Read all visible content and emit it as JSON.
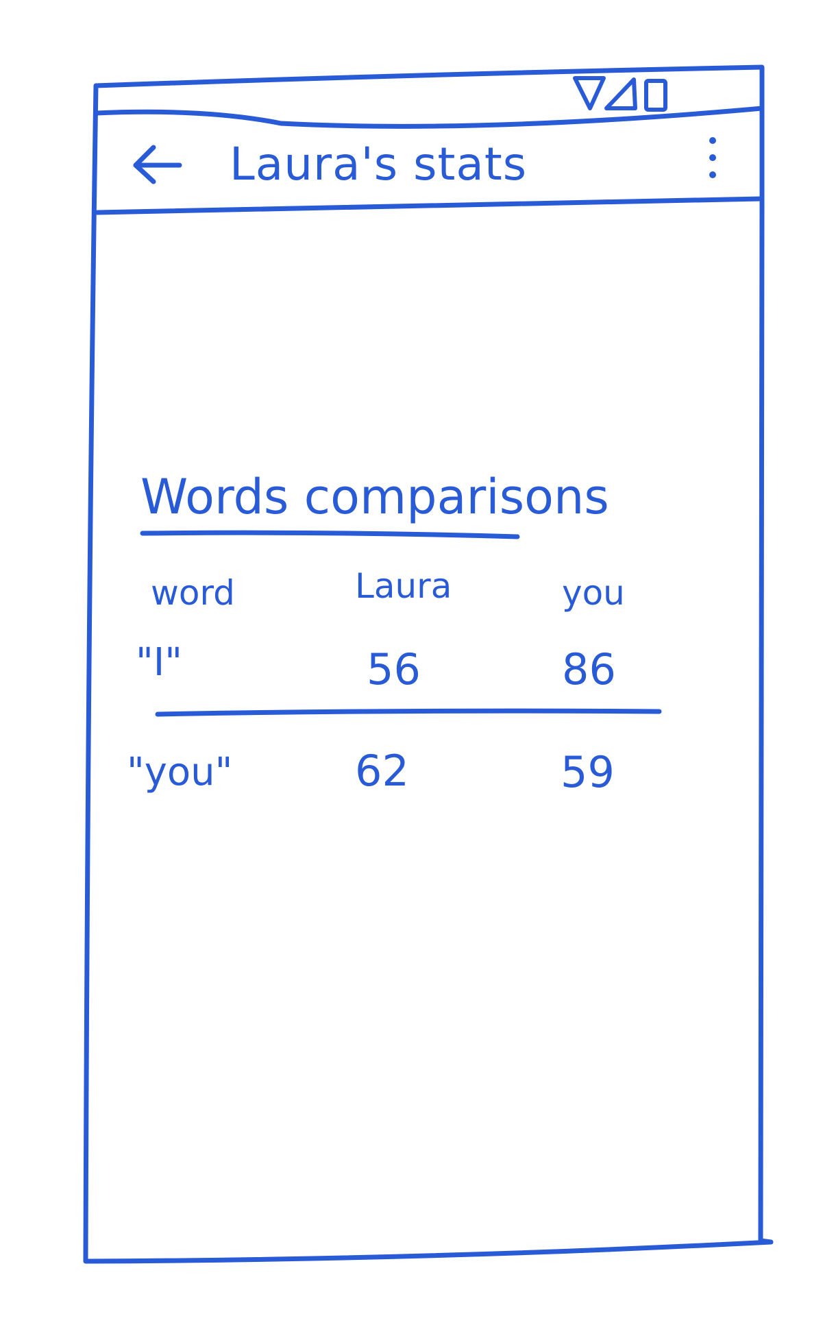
{
  "status_bar": {
    "icons": [
      "wifi-icon",
      "signal-icon",
      "battery-icon"
    ]
  },
  "app_bar": {
    "back_icon": "arrow-left-icon",
    "title": "Laura's stats",
    "menu_icon": "more-vert-icon"
  },
  "section": {
    "title": "Words comparisons"
  },
  "table": {
    "headers": [
      "word",
      "Laura",
      "you"
    ],
    "rows": [
      {
        "word": "\"I\"",
        "laura": "56",
        "you": "86"
      },
      {
        "word": "\"you\"",
        "laura": "62",
        "you": "59"
      }
    ]
  },
  "colors": {
    "ink": "#2a5bd7",
    "background": "#ffffff"
  }
}
